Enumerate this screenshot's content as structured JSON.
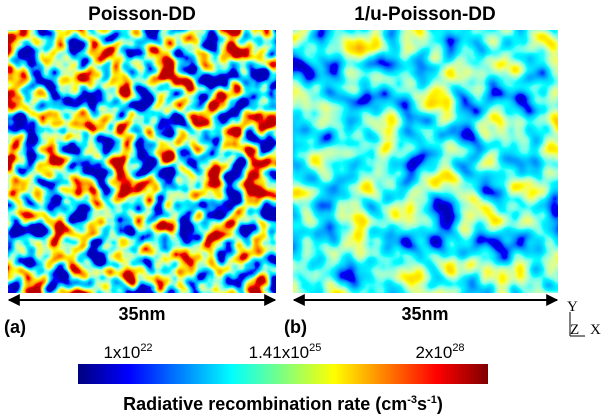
{
  "panels": [
    {
      "title": "Poisson-DD",
      "scale": "35nm",
      "label": "(a)"
    },
    {
      "title": "1/u-Poisson-DD",
      "scale": "35nm",
      "label": "(b)"
    }
  ],
  "axes": {
    "y": "Y",
    "z": "Z",
    "x": "X"
  },
  "colorbar": {
    "ticks": [
      {
        "base": "1x10",
        "exp": "22"
      },
      {
        "base": "1.41x10",
        "exp": "25"
      },
      {
        "base": "2x10",
        "exp": "28"
      }
    ],
    "title": {
      "text": "Radiative recombination rate (cm",
      "exp1": "-3",
      "mid": "s",
      "exp2": "-1",
      "end": ")"
    }
  }
}
